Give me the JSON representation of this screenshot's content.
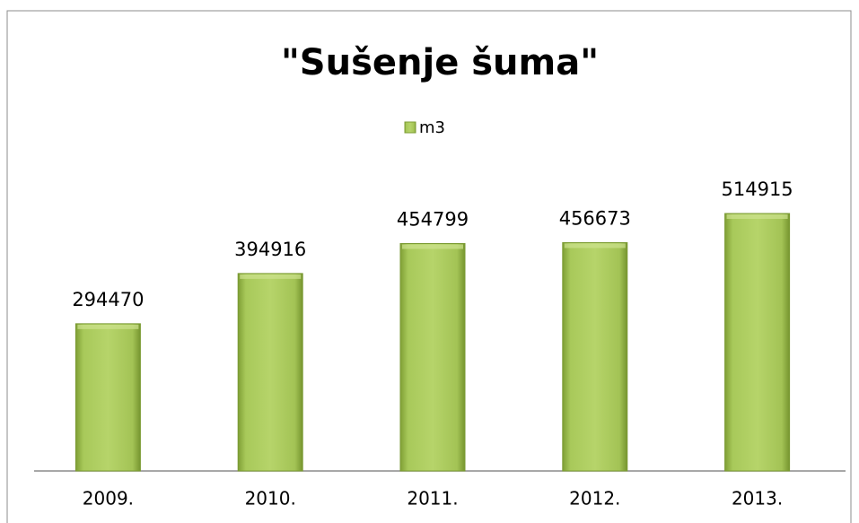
{
  "chart_data": {
    "type": "bar",
    "title": "\"Sušenje šuma\"",
    "categories": [
      "2009.",
      "2010.",
      "2011.",
      "2012.",
      "2013."
    ],
    "series": [
      {
        "name": "m3",
        "color": "#9bbb59",
        "values": [
          294470,
          394916,
          454799,
          456673,
          514915
        ]
      }
    ],
    "legend": "top"
  }
}
